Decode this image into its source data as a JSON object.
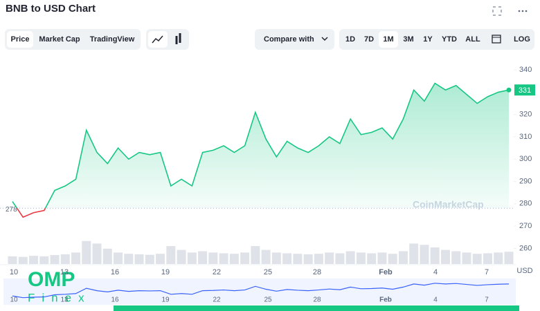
{
  "header": {
    "title": "BNB to USD Chart"
  },
  "controls": {
    "views": [
      "Price",
      "Market Cap",
      "TradingView"
    ],
    "compare": "Compare with",
    "ranges": [
      "1D",
      "7D",
      "1M",
      "3M",
      "1Y",
      "YTD",
      "ALL"
    ],
    "log": "LOG"
  },
  "watermarks": {
    "source": "CoinMarketCap",
    "logo": "OMP",
    "logo_sub": "Finex"
  },
  "chart_data": {
    "type": "line",
    "x_labels": [
      "10",
      "13",
      "16",
      "19",
      "22",
      "25",
      "28",
      "Feb",
      "4",
      "7"
    ],
    "values": [
      281,
      274,
      276,
      277,
      286,
      288,
      291,
      313,
      303,
      298,
      305,
      300,
      303,
      302,
      303,
      288,
      291,
      288,
      303,
      304,
      306,
      303,
      306,
      321,
      309,
      301,
      308,
      305,
      303,
      306,
      310,
      307,
      318,
      311,
      312,
      314,
      309,
      318,
      331,
      326,
      334,
      331,
      333,
      329,
      325,
      328,
      330,
      331
    ],
    "volume": [
      30,
      28,
      32,
      30,
      35,
      38,
      45,
      90,
      80,
      60,
      45,
      40,
      38,
      36,
      40,
      70,
      55,
      45,
      50,
      45,
      42,
      40,
      45,
      70,
      55,
      45,
      42,
      40,
      38,
      40,
      45,
      42,
      50,
      45,
      42,
      45,
      40,
      50,
      80,
      75,
      65,
      55,
      50,
      45,
      40,
      42,
      45,
      48
    ],
    "color": "#16c784",
    "down_color": "#ea3943",
    "baseline": 278,
    "ylim": [
      253,
      345
    ],
    "yticks": [
      260,
      270,
      280,
      290,
      300,
      310,
      320,
      330,
      340
    ],
    "y_unit": "USD"
  }
}
